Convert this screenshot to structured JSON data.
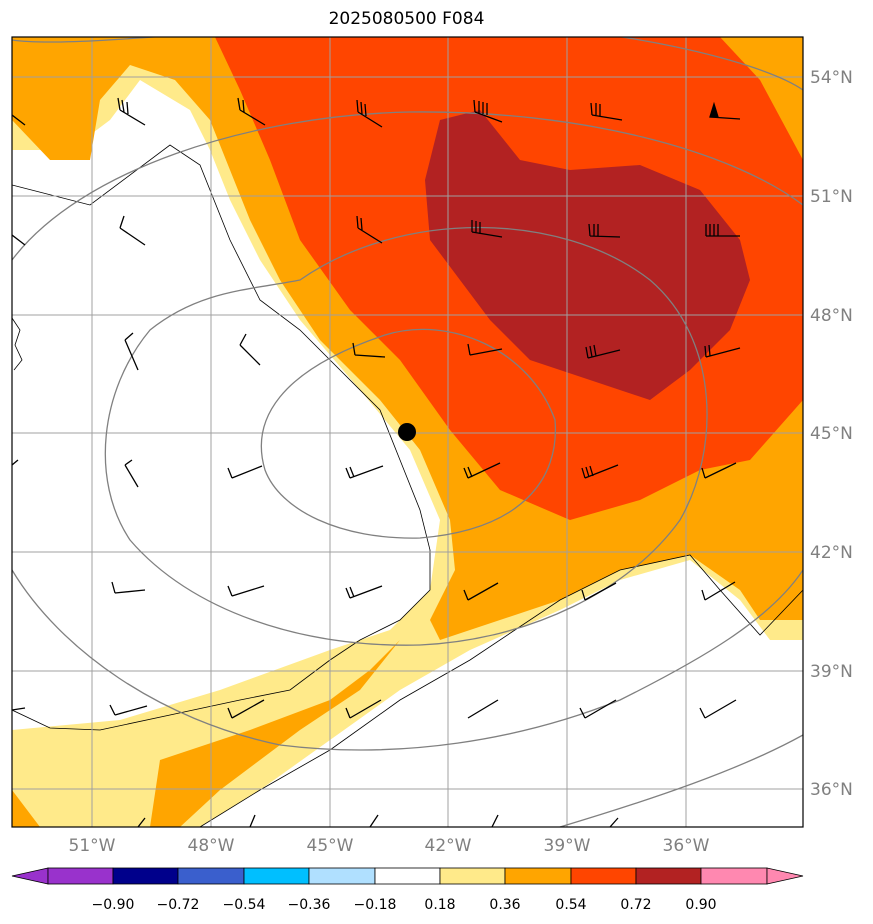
{
  "title": "2025080500 F084",
  "map": {
    "lat_labels": [
      "54°N",
      "51°N",
      "48°N",
      "45°N",
      "42°N",
      "39°N",
      "36°N"
    ],
    "lon_labels": [
      "51°W",
      "48°W",
      "45°W",
      "42°W",
      "39°W",
      "36°W"
    ],
    "center_marker": {
      "lat": 45,
      "lon": -43
    },
    "colors": {
      "yellow": "#ffea8a",
      "orange": "#ffa500",
      "red_orange": "#ff4500",
      "dark_red": "#b22222",
      "contour": "#808080",
      "grid": "#a0a0a0"
    }
  },
  "colorbar": {
    "colors": [
      "#9932cc",
      "#00008b",
      "#3a5fcd",
      "#00bfff",
      "#b0e0ff",
      "#ffffff",
      "#ffea8a",
      "#ffa500",
      "#ff4500",
      "#b22222",
      "#ff88b0"
    ],
    "tick_labels": [
      "−0.90",
      "−0.72",
      "−0.54",
      "−0.36",
      "−0.18",
      "0.18",
      "0.36",
      "0.54",
      "0.72",
      "0.90"
    ]
  }
}
